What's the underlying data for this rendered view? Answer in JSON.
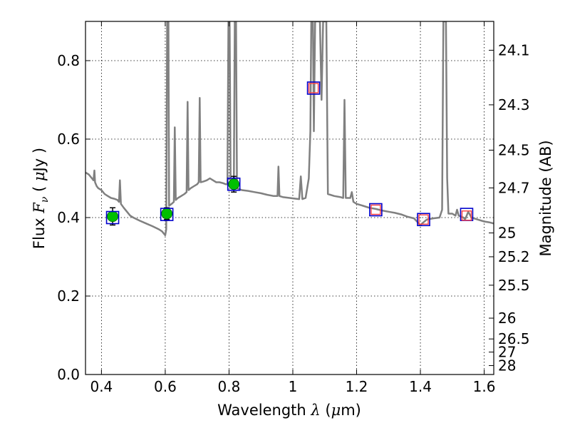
{
  "chart_data": {
    "type": "line",
    "xlabel": "Wavelength  λ (μm)",
    "xlabel_parts": {
      "pre": "Wavelength  ",
      "sym": "λ",
      "post": " (",
      "mu": "μ",
      "unit": "m)"
    },
    "ylabel": "Flux  Fν  ( μJy )",
    "ylabel_parts": {
      "pre": "Flux  ",
      "sym": "F",
      "sub": "ν",
      "mid": "  ( ",
      "mu": "μ",
      "unit": "Jy )"
    },
    "ylabel_right": "Magnitude (AB)",
    "xlim": [
      0.35,
      1.63
    ],
    "ylim": [
      0.0,
      0.9
    ],
    "grid": true,
    "grid_style": "dotted",
    "x_ticks": [
      0.4,
      0.6,
      0.8,
      1.0,
      1.2,
      1.4,
      1.6
    ],
    "x_tick_labels": [
      "0.4",
      "0.6",
      "0.8",
      "1",
      "1.2",
      "1.4",
      "1.6"
    ],
    "y_ticks": [
      0.0,
      0.2,
      0.4,
      0.6,
      0.8
    ],
    "y_tick_labels": [
      "0.0",
      "0.2",
      "0.4",
      "0.6",
      "0.8"
    ],
    "right_ticks": [
      {
        "label": "24.1",
        "flux": 0.8265
      },
      {
        "label": "24.3",
        "flux": 0.6874
      },
      {
        "label": "24.5",
        "flux": 0.5718
      },
      {
        "label": "24.7",
        "flux": 0.4756
      },
      {
        "label": "25",
        "flux": 0.3608
      },
      {
        "label": "25.2",
        "flux": 0.3001
      },
      {
        "label": "25.5",
        "flux": 0.2276
      },
      {
        "label": "26",
        "flux": 0.1436
      },
      {
        "label": "26.5",
        "flux": 0.0906
      },
      {
        "label": "27",
        "flux": 0.0572
      },
      {
        "label": "28",
        "flux": 0.0228
      }
    ],
    "series": [
      {
        "kind": "model",
        "color": "#808080",
        "points": [
          [
            0.35,
            0.515
          ],
          [
            0.36,
            0.51
          ],
          [
            0.37,
            0.5
          ],
          [
            0.375,
            0.495
          ],
          [
            0.378,
            0.52
          ],
          [
            0.38,
            0.49
          ],
          [
            0.385,
            0.48
          ],
          [
            0.39,
            0.475
          ],
          [
            0.4,
            0.47
          ],
          [
            0.41,
            0.46
          ],
          [
            0.42,
            0.455
          ],
          [
            0.43,
            0.45
          ],
          [
            0.44,
            0.448
          ],
          [
            0.45,
            0.445
          ],
          [
            0.455,
            0.44
          ],
          [
            0.458,
            0.495
          ],
          [
            0.461,
            0.435
          ],
          [
            0.47,
            0.425
          ],
          [
            0.48,
            0.415
          ],
          [
            0.49,
            0.405
          ],
          [
            0.5,
            0.4
          ],
          [
            0.52,
            0.392
          ],
          [
            0.54,
            0.385
          ],
          [
            0.56,
            0.378
          ],
          [
            0.58,
            0.37
          ],
          [
            0.59,
            0.365
          ],
          [
            0.6,
            0.355
          ],
          [
            0.603,
            0.37
          ],
          [
            0.606,
            0.9
          ],
          [
            0.61,
            0.9
          ],
          [
            0.612,
            0.43
          ],
          [
            0.62,
            0.435
          ],
          [
            0.627,
            0.44
          ],
          [
            0.63,
            0.63
          ],
          [
            0.633,
            0.445
          ],
          [
            0.64,
            0.45
          ],
          [
            0.65,
            0.455
          ],
          [
            0.66,
            0.46
          ],
          [
            0.667,
            0.465
          ],
          [
            0.67,
            0.695
          ],
          [
            0.673,
            0.47
          ],
          [
            0.68,
            0.475
          ],
          [
            0.69,
            0.48
          ],
          [
            0.7,
            0.485
          ],
          [
            0.705,
            0.49
          ],
          [
            0.708,
            0.705
          ],
          [
            0.711,
            0.49
          ],
          [
            0.72,
            0.492
          ],
          [
            0.73,
            0.495
          ],
          [
            0.74,
            0.5
          ],
          [
            0.75,
            0.495
          ],
          [
            0.76,
            0.49
          ],
          [
            0.77,
            0.49
          ],
          [
            0.78,
            0.488
          ],
          [
            0.79,
            0.485
          ],
          [
            0.795,
            0.485
          ],
          [
            0.798,
            0.9
          ],
          [
            0.802,
            0.9
          ],
          [
            0.805,
            0.48
          ],
          [
            0.815,
            0.48
          ],
          [
            0.818,
            0.9
          ],
          [
            0.822,
            0.9
          ],
          [
            0.825,
            0.475
          ],
          [
            0.84,
            0.47
          ],
          [
            0.86,
            0.468
          ],
          [
            0.88,
            0.465
          ],
          [
            0.9,
            0.462
          ],
          [
            0.92,
            0.458
          ],
          [
            0.94,
            0.455
          ],
          [
            0.952,
            0.455
          ],
          [
            0.955,
            0.53
          ],
          [
            0.958,
            0.455
          ],
          [
            0.97,
            0.452
          ],
          [
            0.99,
            0.45
          ],
          [
            1.01,
            0.448
          ],
          [
            1.02,
            0.447
          ],
          [
            1.025,
            0.505
          ],
          [
            1.03,
            0.447
          ],
          [
            1.04,
            0.45
          ],
          [
            1.05,
            0.5
          ],
          [
            1.055,
            0.62
          ],
          [
            1.058,
            0.9
          ],
          [
            1.063,
            0.9
          ],
          [
            1.066,
            0.62
          ],
          [
            1.07,
            0.9
          ],
          [
            1.085,
            0.9
          ],
          [
            1.09,
            0.7
          ],
          [
            1.095,
            0.9
          ],
          [
            1.105,
            0.9
          ],
          [
            1.11,
            0.46
          ],
          [
            1.13,
            0.455
          ],
          [
            1.15,
            0.452
          ],
          [
            1.158,
            0.45
          ],
          [
            1.162,
            0.7
          ],
          [
            1.166,
            0.45
          ],
          [
            1.18,
            0.45
          ],
          [
            1.185,
            0.465
          ],
          [
            1.19,
            0.44
          ],
          [
            1.2,
            0.435
          ],
          [
            1.22,
            0.43
          ],
          [
            1.24,
            0.425
          ],
          [
            1.26,
            0.422
          ],
          [
            1.28,
            0.418
          ],
          [
            1.3,
            0.415
          ],
          [
            1.32,
            0.412
          ],
          [
            1.34,
            0.408
          ],
          [
            1.36,
            0.402
          ],
          [
            1.38,
            0.398
          ],
          [
            1.395,
            0.385
          ],
          [
            1.4,
            0.38
          ],
          [
            1.405,
            0.385
          ],
          [
            1.42,
            0.395
          ],
          [
            1.44,
            0.398
          ],
          [
            1.46,
            0.4
          ],
          [
            1.468,
            0.42
          ],
          [
            1.472,
            0.9
          ],
          [
            1.48,
            0.9
          ],
          [
            1.484,
            0.5
          ],
          [
            1.488,
            0.41
          ],
          [
            1.5,
            0.41
          ],
          [
            1.51,
            0.405
          ],
          [
            1.515,
            0.42
          ],
          [
            1.52,
            0.405
          ],
          [
            1.535,
            0.4
          ],
          [
            1.54,
            0.395
          ],
          [
            1.55,
            0.415
          ],
          [
            1.56,
            0.4
          ],
          [
            1.58,
            0.395
          ],
          [
            1.6,
            0.39
          ],
          [
            1.615,
            0.388
          ],
          [
            1.63,
            0.385
          ]
        ]
      },
      {
        "kind": "observed",
        "marker": "circle",
        "color": "#00c000",
        "points": [
          {
            "x": 0.435,
            "y": 0.403,
            "err": 0.022
          },
          {
            "x": 0.605,
            "y": 0.41,
            "err": 0.015
          },
          {
            "x": 0.815,
            "y": 0.485,
            "err": 0.02
          }
        ]
      },
      {
        "kind": "model-bands",
        "marker": "square",
        "color": "#0000cc",
        "points": [
          {
            "x": 0.435,
            "y": 0.4
          },
          {
            "x": 0.605,
            "y": 0.408
          },
          {
            "x": 0.815,
            "y": 0.485
          },
          {
            "x": 1.065,
            "y": 0.73
          },
          {
            "x": 1.26,
            "y": 0.42
          },
          {
            "x": 1.41,
            "y": 0.395
          },
          {
            "x": 1.545,
            "y": 0.408
          }
        ]
      },
      {
        "kind": "model-bands-alt",
        "marker": "square",
        "color": "#ff4040",
        "points": [
          {
            "x": 1.065,
            "y": 0.73
          },
          {
            "x": 1.26,
            "y": 0.42
          },
          {
            "x": 1.41,
            "y": 0.395
          },
          {
            "x": 1.545,
            "y": 0.405
          }
        ]
      }
    ]
  }
}
